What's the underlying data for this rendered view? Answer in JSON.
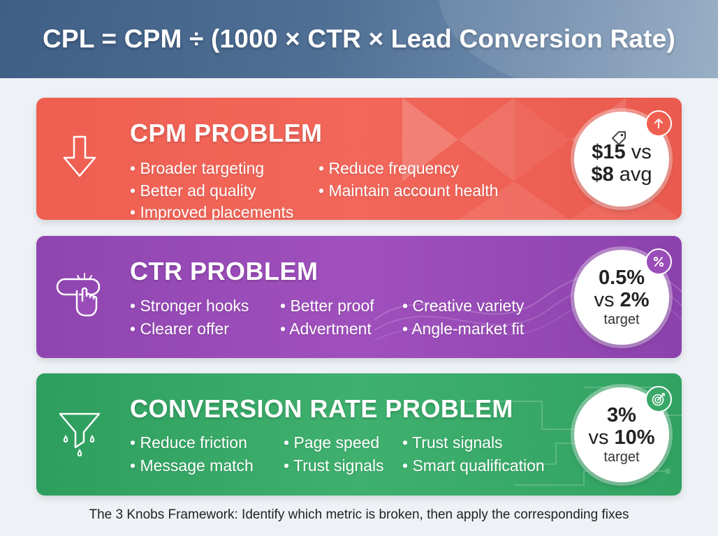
{
  "header": {
    "formula": "CPL = CPM ÷ (1000 × CTR × Lead Conversion Rate)"
  },
  "cards": {
    "cpm": {
      "title": "CPM PROBLEM",
      "bullets": [
        "Broader targeting",
        "Reduce frequency",
        "Better ad quality",
        "Maintain account health",
        "Improved placements"
      ],
      "badge": {
        "value": "$15",
        "vs": "vs",
        "compare": "$8",
        "unit": "avg"
      },
      "icons": [
        "down-arrow-icon",
        "price-tag-icon",
        "arrow-up-icon"
      ],
      "color": "#ef5f51"
    },
    "ctr": {
      "title": "CTR PROBLEM",
      "bullets": [
        "Stronger hooks",
        "Better proof",
        "Creative variety",
        "Clearer offer",
        "Advertment",
        "Angle-market fit"
      ],
      "badge": {
        "value": "0.5%",
        "vs": "vs",
        "compare": "2%",
        "label": "target"
      },
      "icons": [
        "click-hand-icon",
        "percent-icon"
      ],
      "color": "#9a4cb8"
    },
    "cvr": {
      "title": "CONVERSION RATE PROBLEM",
      "bullets": [
        "Reduce friction",
        "Page speed",
        "Trust signals",
        "Message match",
        "Trust signals",
        "Smart qualification"
      ],
      "badge": {
        "value": "3%",
        "vs": "vs",
        "compare": "10%",
        "label": "target"
      },
      "icons": [
        "funnel-icon",
        "target-icon"
      ],
      "color": "#3aa868"
    }
  },
  "footer": {
    "bold": "The 3 Knobs Framework:",
    "text": " Identify which metric is broken, then apply the corresponding fixes"
  }
}
